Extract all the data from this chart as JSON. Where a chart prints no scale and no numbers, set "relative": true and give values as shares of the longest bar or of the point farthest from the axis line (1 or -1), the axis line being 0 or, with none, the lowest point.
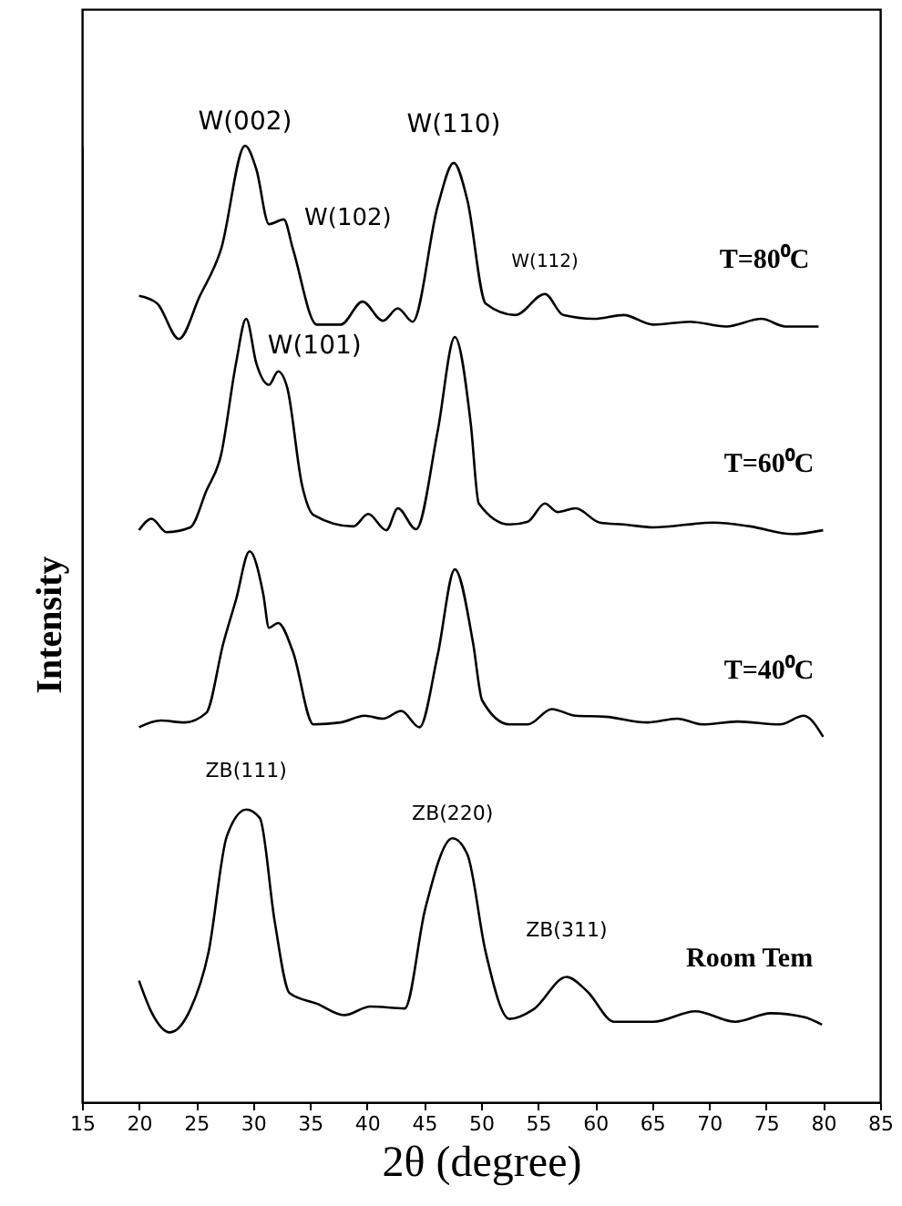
{
  "chart_data": {
    "type": "line",
    "relative": true,
    "xlabel": "2θ (degree)",
    "ylabel": "Intensity",
    "xlim": [
      15,
      85
    ],
    "xticks": [
      15,
      20,
      25,
      30,
      35,
      40,
      45,
      50,
      55,
      60,
      65,
      70,
      75,
      80,
      85
    ],
    "grid": false,
    "legend": false,
    "marker": "none",
    "line_style": "solid",
    "series": [
      {
        "name": "T=80⁰C",
        "color": "#000000",
        "x": [
          20,
          21.6,
          23.5,
          25.3,
          27.2,
          29.3,
          30.3,
          31.4,
          32.7,
          33.5,
          35.6,
          37.7,
          39.6,
          41.4,
          42.7,
          44.0,
          46.2,
          47.6,
          48.8,
          50.4,
          53.0,
          55.6,
          57.2,
          59.9,
          62.5,
          65.1,
          68.3,
          71.5,
          74.6,
          76.7,
          79.6
        ],
        "values": [
          0.843,
          0.835,
          0.798,
          0.842,
          0.892,
          1.0,
          0.975,
          0.918,
          0.923,
          0.892,
          0.813,
          0.813,
          0.837,
          0.817,
          0.83,
          0.816,
          0.937,
          0.982,
          0.943,
          0.835,
          0.823,
          0.845,
          0.823,
          0.819,
          0.823,
          0.813,
          0.816,
          0.811,
          0.819,
          0.811,
          0.811
        ]
      },
      {
        "name": "T=60⁰C",
        "color": "#000000",
        "x": [
          20,
          21.1,
          22.4,
          24.5,
          25.9,
          27.2,
          28.5,
          29.4,
          30.3,
          31.4,
          32.2,
          33.0,
          34.3,
          35.3,
          38.8,
          40.1,
          41.7,
          42.7,
          44.3,
          46.2,
          47.7,
          49.1,
          49.8,
          52.5,
          54.1,
          55.6,
          56.7,
          58.3,
          60.4,
          62.5,
          65.1,
          70.4,
          73.6,
          77.3,
          80
        ],
        "values": [
          0.598,
          0.61,
          0.596,
          0.601,
          0.639,
          0.677,
          0.772,
          0.819,
          0.772,
          0.75,
          0.764,
          0.747,
          0.645,
          0.614,
          0.602,
          0.615,
          0.598,
          0.621,
          0.599,
          0.702,
          0.8,
          0.709,
          0.626,
          0.604,
          0.607,
          0.626,
          0.617,
          0.621,
          0.606,
          0.604,
          0.601,
          0.606,
          0.602,
          0.594,
          0.598
        ]
      },
      {
        "name": "T=40⁰C",
        "color": "#000000",
        "x": [
          20,
          21.9,
          24.0,
          25.9,
          27.4,
          28.5,
          29.7,
          30.9,
          31.4,
          32.2,
          33.5,
          35.3,
          37.7,
          39.8,
          41.4,
          43.0,
          44.6,
          46.2,
          47.7,
          49.3,
          50.1,
          52.5,
          54.1,
          56.2,
          58.3,
          60.9,
          64.6,
          67.2,
          69.4,
          72.5,
          76.2,
          78.3,
          80
        ],
        "values": [
          0.392,
          0.399,
          0.397,
          0.407,
          0.48,
          0.525,
          0.576,
          0.531,
          0.496,
          0.501,
          0.471,
          0.395,
          0.397,
          0.404,
          0.401,
          0.409,
          0.392,
          0.468,
          0.557,
          0.48,
          0.42,
          0.395,
          0.395,
          0.411,
          0.404,
          0.403,
          0.397,
          0.401,
          0.395,
          0.398,
          0.395,
          0.404,
          0.382
        ]
      },
      {
        "name": "Room Tem",
        "color": "#000000",
        "x": [
          20,
          21.1,
          22.7,
          24.5,
          26.1,
          27.7,
          29.4,
          30.6,
          31.9,
          33.2,
          35.6,
          38.0,
          40.3,
          43.3,
          45.1,
          47.5,
          48.8,
          50.4,
          52.5,
          54.6,
          57.5,
          59.3,
          61.7,
          65.1,
          68.8,
          72.3,
          75.4,
          78.3,
          79.9
        ],
        "values": [
          0.127,
          0.094,
          0.073,
          0.097,
          0.157,
          0.278,
          0.306,
          0.297,
          0.189,
          0.114,
          0.103,
          0.091,
          0.1,
          0.098,
          0.202,
          0.276,
          0.259,
          0.157,
          0.087,
          0.097,
          0.131,
          0.116,
          0.084,
          0.084,
          0.095,
          0.084,
          0.093,
          0.089,
          0.081
        ]
      }
    ],
    "annotations": [
      {
        "text": "W(002)",
        "x": 29.3,
        "y": 1.0
      },
      {
        "text": "W(110)",
        "x": 47.6,
        "y": 0.982
      },
      {
        "text": "W(102)",
        "x": 39.6,
        "y": 0.837
      },
      {
        "text": "W(112)",
        "x": 55.6,
        "y": 0.845
      },
      {
        "text": "W(101)",
        "x": 32.2,
        "y": 0.764
      },
      {
        "text": "ZB(111)",
        "x": 29.4,
        "y": 0.306
      },
      {
        "text": "ZB(220)",
        "x": 47.5,
        "y": 0.276
      },
      {
        "text": "ZB(311)",
        "x": 57.5,
        "y": 0.131
      }
    ]
  }
}
